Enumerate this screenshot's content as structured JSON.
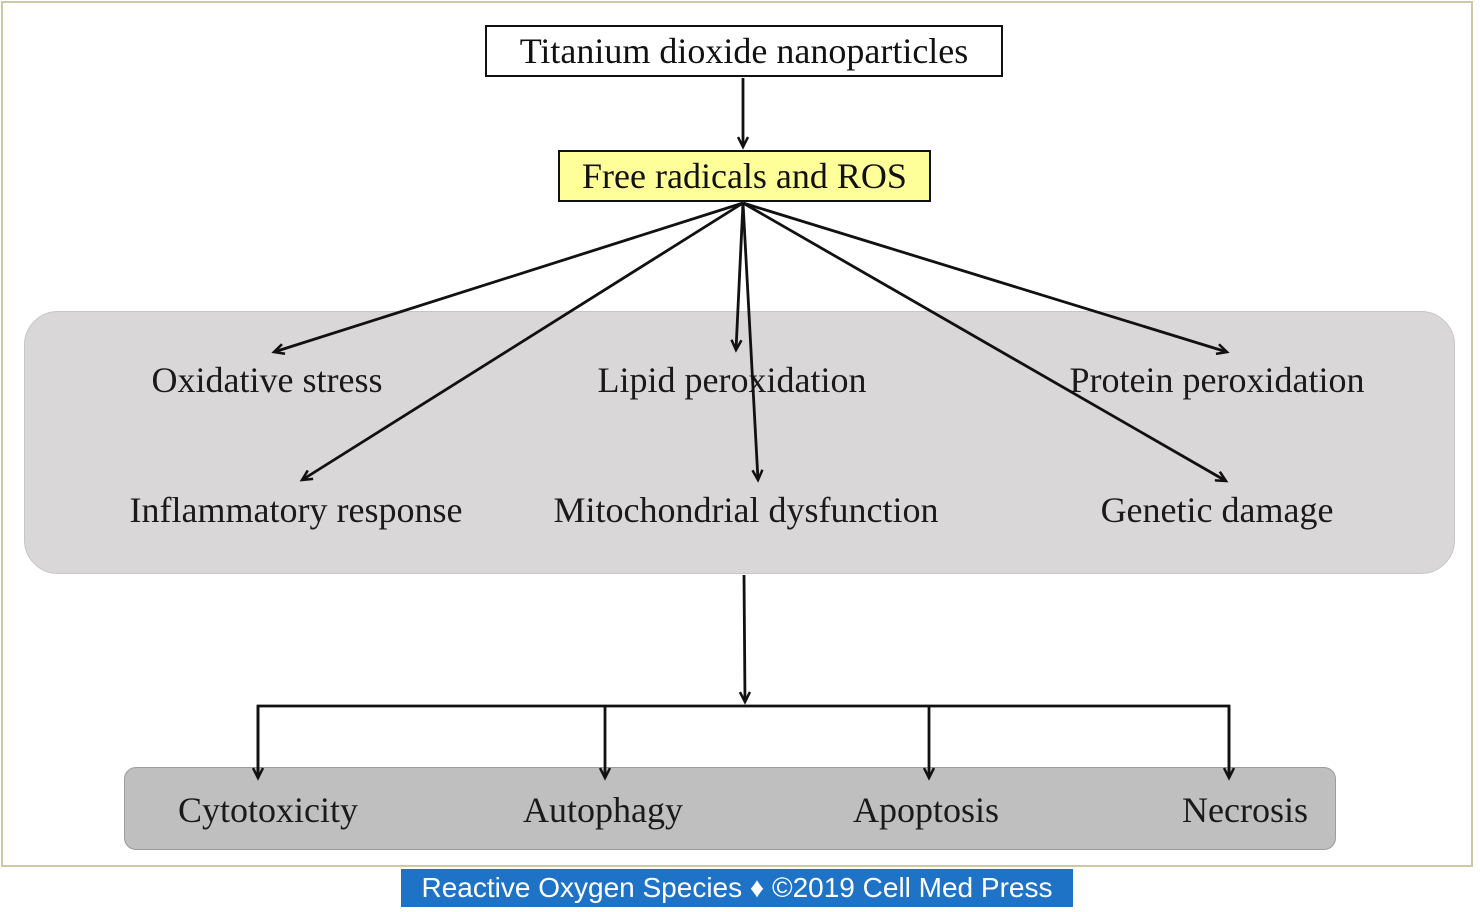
{
  "diagram": {
    "source": "Titanium dioxide nanoparticles",
    "intermediate": "Free radicals and ROS",
    "effects": [
      "Oxidative stress",
      "Lipid peroxidation",
      "Protein peroxidation",
      "Inflammatory response",
      "Mitochondrial dysfunction",
      "Genetic damage"
    ],
    "outcomes": [
      "Cytotoxicity",
      "Autophagy",
      "Apoptosis",
      "Necrosis"
    ]
  },
  "caption": "Reactive Oxygen Species ♦ ©2019 Cell Med Press",
  "colors": {
    "ros_fill": "#ffff99",
    "effects_panel": "#d9d7d8",
    "outcomes_panel": "#bfbfbf",
    "caption_bg": "#1f73c6",
    "frame_border": "#cfc8a6"
  }
}
